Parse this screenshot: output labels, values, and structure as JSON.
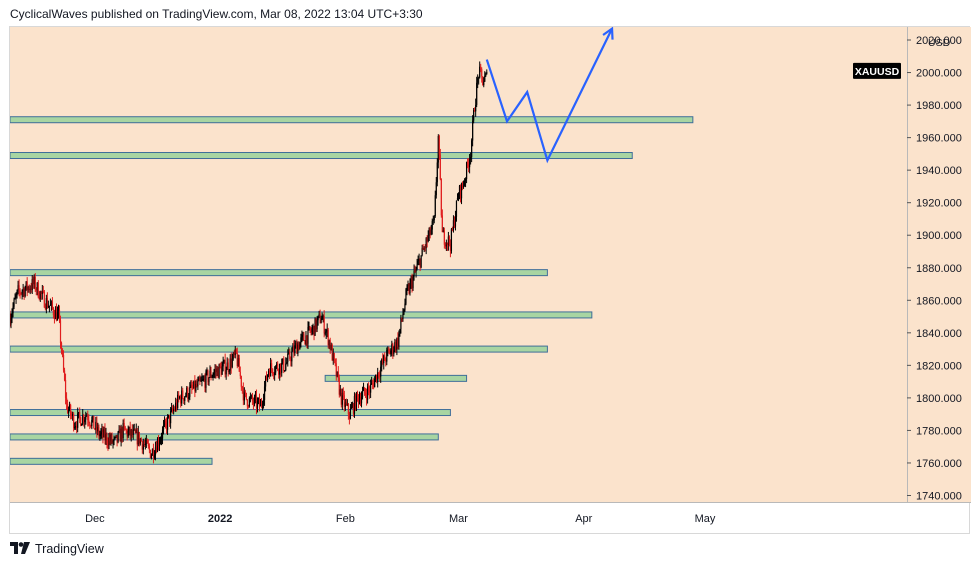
{
  "header": {
    "author": "CyclicalWaves",
    "published_text": "published on TradingView.com, Mar 08, 2022 13:04 UTC+3:30"
  },
  "footer": {
    "logo_icon": "tradingview-logo-icon",
    "brand": "TradingView"
  },
  "colors": {
    "background": "#fbe3cc",
    "zone_fill": "#a8d5a2",
    "zone_border": "#3f6e99",
    "candle_up": "#000000",
    "candle_down": "#e01e1e",
    "projection": "#2962ff",
    "symbol_badge": "#000000"
  },
  "chart_data": {
    "type": "candlestick",
    "symbol": "XAUUSD",
    "currency": "USD",
    "y_axis": {
      "ticks": [
        1740,
        1760,
        1780,
        1800,
        1820,
        1840,
        1860,
        1880,
        1900,
        1920,
        1940,
        1960,
        1980,
        2000,
        2020
      ],
      "tick_labels": [
        "1740.000",
        "1760.000",
        "1780.000",
        "1800.000",
        "1820.000",
        "1840.000",
        "1860.000",
        "1880.000",
        "1900.000",
        "1920.000",
        "1940.000",
        "1960.000",
        "1980.000",
        "2000.000",
        "2020.000"
      ],
      "range": [
        1736,
        2028
      ]
    },
    "x_axis": {
      "range": [
        "2021-11-10",
        "2022-06-20"
      ],
      "ticks": [
        {
          "date": "2021-12-01",
          "label": "Dec"
        },
        {
          "date": "2022-01-01",
          "label": "2022"
        },
        {
          "date": "2022-02-01",
          "label": "Feb"
        },
        {
          "date": "2022-03-01",
          "label": "Mar"
        },
        {
          "date": "2022-04-01",
          "label": "Apr"
        },
        {
          "date": "2022-05-01",
          "label": "May"
        }
      ]
    },
    "price_path": [
      [
        "2021-11-10",
        1850
      ],
      [
        "2021-11-12",
        1865
      ],
      [
        "2021-11-16",
        1870
      ],
      [
        "2021-11-18",
        1862
      ],
      [
        "2021-11-22",
        1850
      ],
      [
        "2021-11-24",
        1795
      ],
      [
        "2021-11-26",
        1785
      ],
      [
        "2021-11-29",
        1790
      ],
      [
        "2021-12-02",
        1778
      ],
      [
        "2021-12-06",
        1772
      ],
      [
        "2021-12-08",
        1780
      ],
      [
        "2021-12-12",
        1775
      ],
      [
        "2021-12-15",
        1766
      ],
      [
        "2021-12-17",
        1775
      ],
      [
        "2021-12-20",
        1790
      ],
      [
        "2021-12-22",
        1800
      ],
      [
        "2021-12-27",
        1808
      ],
      [
        "2021-12-30",
        1815
      ],
      [
        "2022-01-03",
        1820
      ],
      [
        "2022-01-05",
        1826
      ],
      [
        "2022-01-07",
        1800
      ],
      [
        "2022-01-11",
        1795
      ],
      [
        "2022-01-13",
        1818
      ],
      [
        "2022-01-17",
        1820
      ],
      [
        "2022-01-20",
        1832
      ],
      [
        "2022-01-24",
        1842
      ],
      [
        "2022-01-26",
        1850
      ],
      [
        "2022-01-28",
        1835
      ],
      [
        "2022-01-31",
        1800
      ],
      [
        "2022-02-02",
        1790
      ],
      [
        "2022-02-04",
        1800
      ],
      [
        "2022-02-07",
        1805
      ],
      [
        "2022-02-09",
        1815
      ],
      [
        "2022-02-11",
        1825
      ],
      [
        "2022-02-14",
        1835
      ],
      [
        "2022-02-16",
        1862
      ],
      [
        "2022-02-18",
        1875
      ],
      [
        "2022-02-21",
        1895
      ],
      [
        "2022-02-23",
        1908
      ],
      [
        "2022-02-24",
        1960
      ],
      [
        "2022-02-25",
        1900
      ],
      [
        "2022-02-27",
        1895
      ],
      [
        "2022-02-28",
        1910
      ],
      [
        "2022-03-01",
        1925
      ],
      [
        "2022-03-02",
        1930
      ],
      [
        "2022-03-03",
        1940
      ],
      [
        "2022-03-04",
        1952
      ],
      [
        "2022-03-05",
        1980
      ],
      [
        "2022-03-06",
        2000
      ],
      [
        "2022-03-07",
        1995
      ],
      [
        "2022-03-08",
        1997
      ]
    ],
    "zones": [
      {
        "from": "2021-11-10",
        "to": "2022-04-28",
        "price": 1971
      },
      {
        "from": "2021-11-10",
        "to": "2022-04-13",
        "price": 1949
      },
      {
        "from": "2021-11-10",
        "to": "2022-03-23",
        "price": 1877
      },
      {
        "from": "2021-11-10",
        "to": "2022-04-03",
        "price": 1851
      },
      {
        "from": "2021-11-10",
        "to": "2022-03-23",
        "price": 1830
      },
      {
        "from": "2022-01-27",
        "to": "2022-03-03",
        "price": 1812
      },
      {
        "from": "2021-11-10",
        "to": "2022-02-27",
        "price": 1791
      },
      {
        "from": "2021-11-10",
        "to": "2022-02-24",
        "price": 1776
      },
      {
        "from": "2021-11-10",
        "to": "2021-12-30",
        "price": 1761
      }
    ],
    "projection": [
      [
        "2022-03-08",
        2008
      ],
      [
        "2022-03-13",
        1970
      ],
      [
        "2022-03-18",
        1988
      ],
      [
        "2022-03-23",
        1946
      ],
      [
        "2022-04-08",
        2027
      ]
    ]
  }
}
